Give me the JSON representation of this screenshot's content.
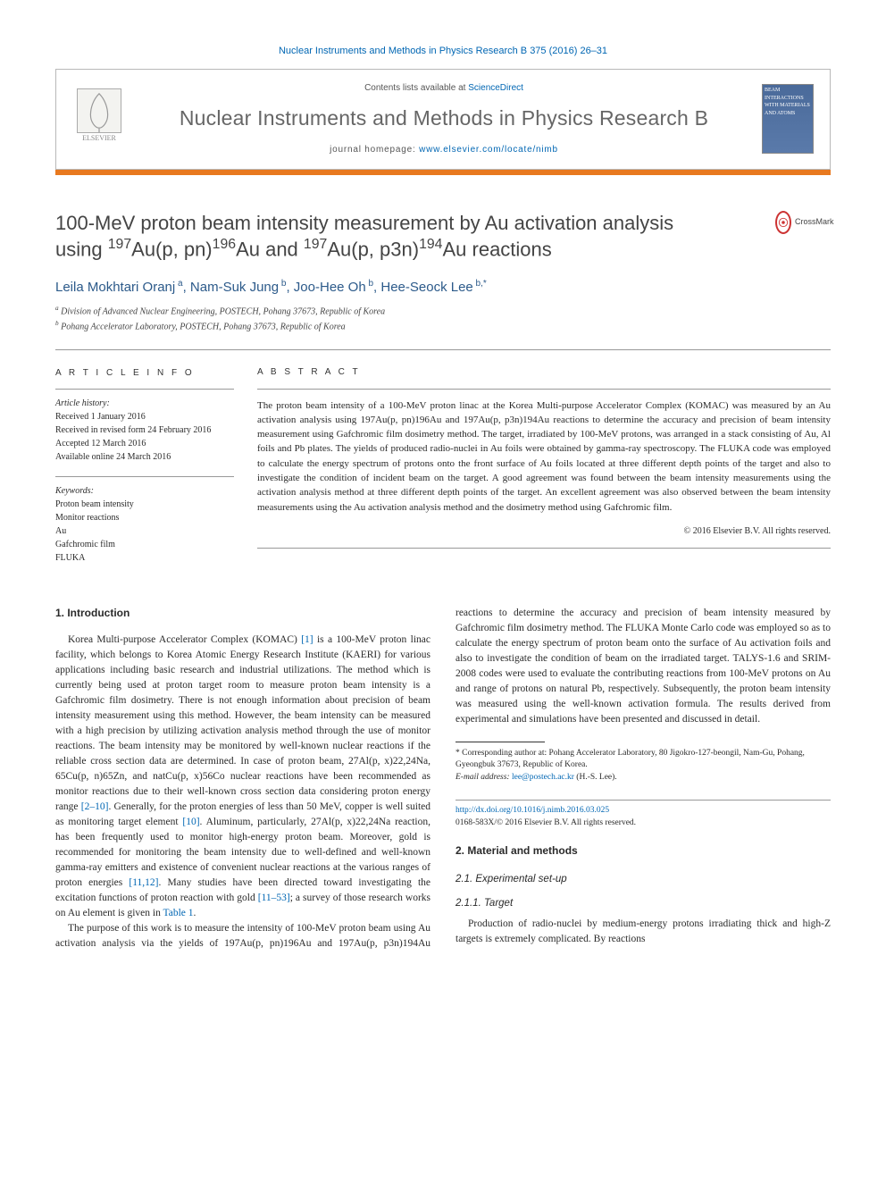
{
  "top_citation": "Nuclear Instruments and Methods in Physics Research B 375 (2016) 26–31",
  "header": {
    "publisher": "ELSEVIER",
    "contents_line_prefix": "Contents lists available at ",
    "contents_link": "ScienceDirect",
    "journal_name": "Nuclear Instruments and Methods in Physics Research B",
    "homepage_prefix": "journal homepage: ",
    "homepage_url": "www.elsevier.com/locate/nimb",
    "cover_text": "BEAM INTERACTIONS WITH MATERIALS AND ATOMS"
  },
  "title_parts": {
    "line1_pre": "100-MeV proton beam intensity measurement by Au activation analysis",
    "line2_pre": "using ",
    "r1_a": "197",
    "r1_b": "Au(p, pn)",
    "r1_c": "196",
    "r1_d": "Au and ",
    "r2_a": "197",
    "r2_b": "Au(p, p3n)",
    "r2_c": "194",
    "r2_d": "Au reactions"
  },
  "crossmark_label": "CrossMark",
  "authors_html": "Leila Mokhtari Oranj<sup> a</sup>, Nam-Suk Jung<sup> b</sup>, Joo-Hee Oh<sup> b</sup>, Hee-Seock Lee<sup> b,*</sup>",
  "affiliations": [
    "a Division of Advanced Nuclear Engineering, POSTECH, Pohang 37673, Republic of Korea",
    "b Pohang Accelerator Laboratory, POSTECH, Pohang 37673, Republic of Korea"
  ],
  "article_info": {
    "heading": "A R T I C L E   I N F O",
    "history_label": "Article history:",
    "history": [
      "Received 1 January 2016",
      "Received in revised form 24 February 2016",
      "Accepted 12 March 2016",
      "Available online 24 March 2016"
    ],
    "keywords_label": "Keywords:",
    "keywords": [
      "Proton beam intensity",
      "Monitor reactions",
      "Au",
      "Gafchromic film",
      "FLUKA"
    ]
  },
  "abstract": {
    "heading": "A B S T R A C T",
    "text": "The proton beam intensity of a 100-MeV proton linac at the Korea Multi-purpose Accelerator Complex (KOMAC) was measured by an Au activation analysis using 197Au(p, pn)196Au and 197Au(p, p3n)194Au reactions to determine the accuracy and precision of beam intensity measurement using Gafchromic film dosimetry method. The target, irradiated by 100-MeV protons, was arranged in a stack consisting of Au, Al foils and Pb plates. The yields of produced radio-nuclei in Au foils were obtained by gamma-ray spectroscopy. The FLUKA code was employed to calculate the energy spectrum of protons onto the front surface of Au foils located at three different depth points of the target and also to investigate the condition of incident beam on the target. A good agreement was found between the beam intensity measurements using the activation analysis method at three different depth points of the target. An excellent agreement was also observed between the beam intensity measurements using the Au activation analysis method and the dosimetry method using Gafchromic film.",
    "copyright": "© 2016 Elsevier B.V. All rights reserved."
  },
  "intro": {
    "heading": "1. Introduction",
    "para1_parts": {
      "a": "Korea Multi-purpose Accelerator Complex (KOMAC) ",
      "ref1": "[1]",
      "b": " is a 100-MeV proton linac facility, which belongs to Korea Atomic Energy Research Institute (KAERI) for various applications including basic research and industrial utilizations. The method which is currently being used at proton target room to measure proton beam intensity is a Gafchromic film dosimetry. There is not enough information about precision of beam intensity measurement using this method. However, the beam intensity can be measured with a high precision by utilizing activation analysis method through the use of monitor reactions. The beam intensity may be monitored by well-known nuclear reactions if the reliable cross section data are determined. In case of proton beam, 27Al(p, x)22,24Na, 65Cu(p, n)65Zn, and natCu(p, x)56Co nuclear reactions have been recommended as monitor reactions due to their well-known cross section data considering proton energy range ",
      "ref2": "[2–10]",
      "c": ". Generally, for the proton energies of less than 50 MeV, copper is well suited as monitoring target element ",
      "ref3": "[10]",
      "d": ". Aluminum, particularly, 27Al(p, x)22,24Na reaction, has been frequently used to monitor high-energy proton beam. Moreover, gold is recommended for monitoring the beam intensity due to well-defined and well-known gamma-ray emitters and existence of convenient nuclear reactions at the various ranges of proton energies ",
      "ref4": "[11,12]",
      "e": ". Many studies have been directed toward investigating the excitation functions of proton reaction with gold ",
      "ref5": "[11–53]",
      "f": "; a survey of those research works on Au element is given in ",
      "reftbl": "Table 1",
      "g": "."
    },
    "para2": "The purpose of this work is to measure the intensity of 100-MeV proton beam using Au activation analysis via the yields of 197Au(p, pn)196Au and 197Au(p, p3n)194Au reactions to determine the accuracy and precision of beam intensity measured by Gafchromic film dosimetry method. The FLUKA Monte Carlo code was employed so as to calculate the energy spectrum of proton beam onto the surface of Au activation foils and also to investigate the condition of beam on the irradiated target. TALYS-1.6 and SRIM-2008 codes were used to evaluate the contributing reactions from 100-MeV protons on Au and range of protons on natural Pb, respectively. Subsequently, the proton beam intensity was measured using the well-known activation formula. The results derived from experimental and simulations have been presented and discussed in detail."
  },
  "methods": {
    "heading": "2. Material and methods",
    "sub1": "2.1. Experimental set-up",
    "sub11": "2.1.1. Target",
    "sub11_text": "Production of radio-nuclei by medium-energy protons irradiating thick and high-Z targets is extremely complicated. By reactions"
  },
  "footnote": {
    "corr": "* Corresponding author at: Pohang Accelerator Laboratory, 80 Jigokro-127-beongil, Nam-Gu, Pohang, Gyeongbuk 37673, Republic of Korea.",
    "email_label": "E-mail address: ",
    "email": "lee@postech.ac.kr",
    "email_who": " (H.-S. Lee)."
  },
  "footer": {
    "doi": "http://dx.doi.org/10.1016/j.nimb.2016.03.025",
    "issn_line": "0168-583X/© 2016 Elsevier B.V. All rights reserved."
  },
  "colors": {
    "accent_orange": "#e8791f",
    "link_blue": "#0066b3",
    "text_gray": "#555555"
  }
}
